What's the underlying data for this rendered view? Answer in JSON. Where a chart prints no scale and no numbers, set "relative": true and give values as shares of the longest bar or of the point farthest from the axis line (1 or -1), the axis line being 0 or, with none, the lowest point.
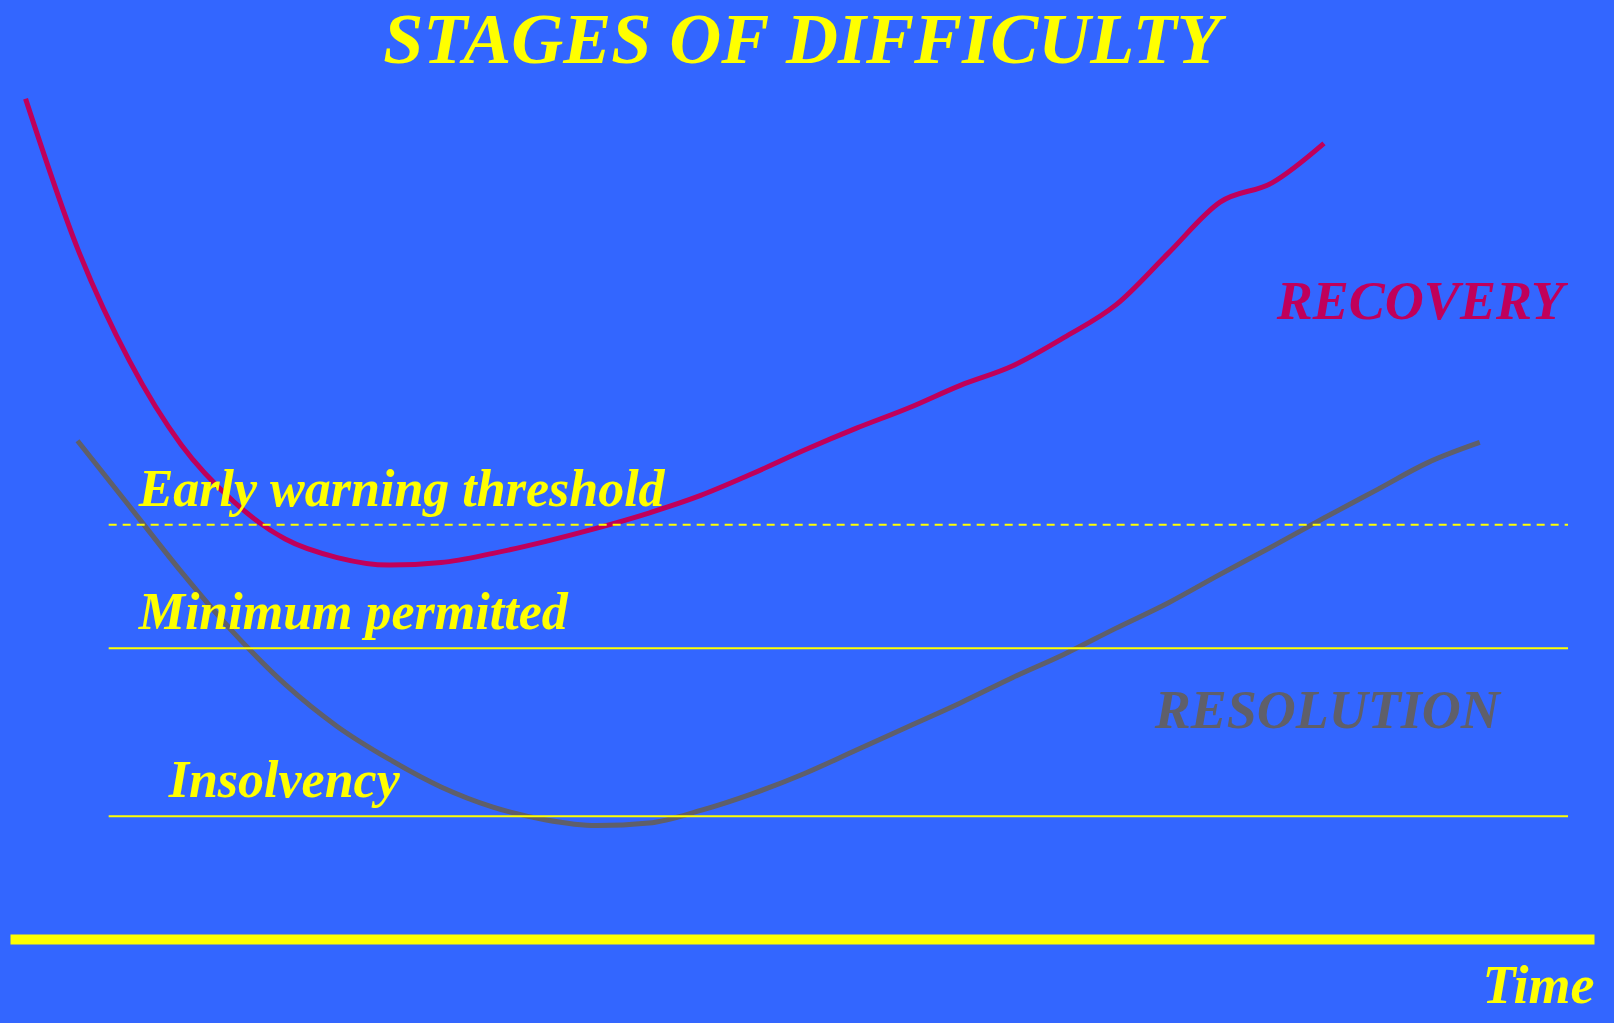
{
  "chart_data": {
    "type": "line",
    "title": "STAGES OF DIFFICULTY",
    "xlabel": "Time",
    "relative": true,
    "categories": [
      null,
      null,
      null,
      null,
      null,
      null,
      null,
      null,
      null,
      null,
      null,
      null,
      null,
      null,
      null,
      null,
      null,
      null,
      null,
      null,
      null,
      null,
      null,
      null,
      null,
      null,
      null,
      null,
      null
    ],
    "series": [
      {
        "name": "RECOVERY",
        "color": "#c0005a",
        "values": [
          1.0,
          0.822,
          0.688,
          0.588,
          0.521,
          0.476,
          0.454,
          0.445,
          0.448,
          0.459,
          0.473,
          0.489,
          0.507,
          0.528,
          0.554,
          0.582,
          0.608,
          0.632,
          0.659,
          0.682,
          0.716,
          0.755,
          0.816,
          0.877,
          0.9,
          0.947,
          null,
          null,
          null
        ]
      },
      {
        "name": "RESOLUTION",
        "color": "#5f5f6a",
        "values": [
          null,
          0.593,
          0.515,
          0.437,
          0.365,
          0.303,
          0.253,
          0.214,
          0.181,
          0.157,
          0.142,
          0.135,
          0.138,
          0.153,
          0.173,
          0.197,
          0.225,
          0.253,
          0.281,
          0.311,
          0.339,
          0.37,
          0.4,
          0.434,
          0.467,
          0.501,
          0.534,
          0.567,
          0.591
        ]
      }
    ],
    "ref_lines": [
      {
        "axis": "y",
        "value": 0.493,
        "label": "Early warning threshold",
        "color": "#ffff00",
        "line_style": "dashed"
      },
      {
        "axis": "y",
        "value": 0.346,
        "label": "Minimum permitted",
        "color": "#ffff00",
        "line_style": "solid"
      },
      {
        "axis": "y",
        "value": 0.146,
        "label": "Insolvency",
        "color": "#ffff00",
        "line_style": "solid"
      }
    ],
    "legend": false
  }
}
